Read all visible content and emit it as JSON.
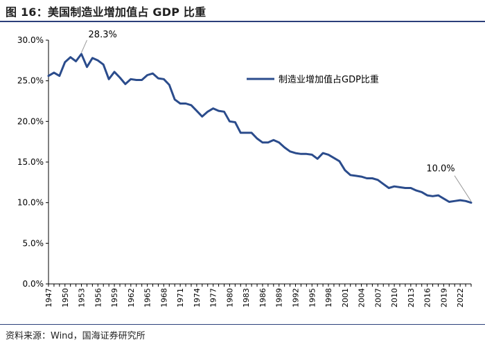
{
  "header": {
    "title": "图 16：美国制造业增加值占 GDP 比重"
  },
  "footer": {
    "source": "资料来源：Wind，国海证券研究所"
  },
  "chart_data": {
    "type": "line",
    "title": "图 16：美国制造业增加值占 GDP 比重",
    "xlabel": "",
    "ylabel": "",
    "ylim": [
      0,
      30
    ],
    "y_ticks": [
      "0.0%",
      "5.0%",
      "10.0%",
      "15.0%",
      "20.0%",
      "25.0%",
      "30.0%"
    ],
    "x_ticks": [
      "1947",
      "1950",
      "1953",
      "1956",
      "1959",
      "1962",
      "1965",
      "1968",
      "1971",
      "1974",
      "1977",
      "1980",
      "1983",
      "1986",
      "1989",
      "1992",
      "1995",
      "1998",
      "2001",
      "2004",
      "2007",
      "2010",
      "2013",
      "2016",
      "2019",
      "2022"
    ],
    "legend": {
      "label": "制造业增加值占GDP比重",
      "position": "upper-right",
      "color": "#2b4c8c"
    },
    "line_color": "#2b4c8c",
    "annotations": [
      {
        "label": "28.3%",
        "year": 1953,
        "value": 28.3
      },
      {
        "label": "10.0%",
        "year": 2024,
        "value": 10.0
      }
    ],
    "series": [
      {
        "name": "制造业增加值占GDP比重",
        "x": [
          1947,
          1948,
          1949,
          1950,
          1951,
          1952,
          1953,
          1954,
          1955,
          1956,
          1957,
          1958,
          1959,
          1960,
          1961,
          1962,
          1963,
          1964,
          1965,
          1966,
          1967,
          1968,
          1969,
          1970,
          1971,
          1972,
          1973,
          1974,
          1975,
          1976,
          1977,
          1978,
          1979,
          1980,
          1981,
          1982,
          1983,
          1984,
          1985,
          1986,
          1987,
          1988,
          1989,
          1990,
          1991,
          1992,
          1993,
          1994,
          1995,
          1996,
          1997,
          1998,
          1999,
          2000,
          2001,
          2002,
          2003,
          2004,
          2005,
          2006,
          2007,
          2008,
          2009,
          2010,
          2011,
          2012,
          2013,
          2014,
          2015,
          2016,
          2017,
          2018,
          2019,
          2020,
          2021,
          2022,
          2023,
          2024
        ],
        "values": [
          25.6,
          26.0,
          25.6,
          27.3,
          27.9,
          27.4,
          28.3,
          26.7,
          27.8,
          27.5,
          27.0,
          25.2,
          26.1,
          25.4,
          24.6,
          25.2,
          25.1,
          25.1,
          25.7,
          25.9,
          25.3,
          25.2,
          24.5,
          22.7,
          22.2,
          22.2,
          22.0,
          21.3,
          20.6,
          21.2,
          21.6,
          21.3,
          21.2,
          20.0,
          19.9,
          18.6,
          18.6,
          18.6,
          17.9,
          17.4,
          17.4,
          17.7,
          17.4,
          16.8,
          16.3,
          16.1,
          16.0,
          16.0,
          15.9,
          15.4,
          16.1,
          15.9,
          15.5,
          15.1,
          14.0,
          13.4,
          13.3,
          13.2,
          13.0,
          13.0,
          12.8,
          12.3,
          11.8,
          12.0,
          11.9,
          11.8,
          11.8,
          11.5,
          11.3,
          10.9,
          10.8,
          10.9,
          10.5,
          10.1,
          10.2,
          10.3,
          10.2,
          10.0
        ]
      }
    ]
  }
}
